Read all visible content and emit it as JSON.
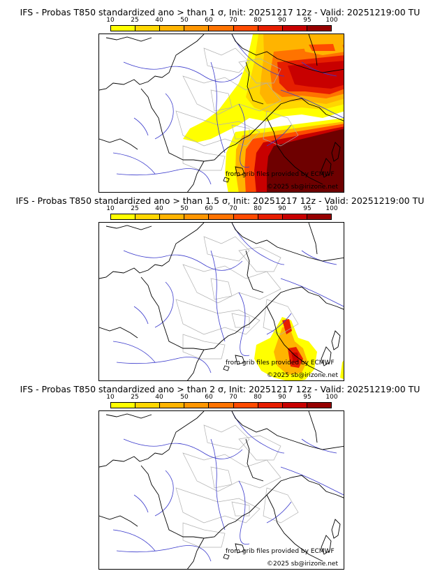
{
  "colorbar": {
    "ticks": [
      "10",
      "25",
      "40",
      "50",
      "60",
      "70",
      "80",
      "90",
      "95",
      "100"
    ],
    "colors": [
      "#ffff00",
      "#ffd700",
      "#ffb400",
      "#ff9600",
      "#ff7300",
      "#ff4b00",
      "#e61e00",
      "#c80000",
      "#960000",
      "#6e0000"
    ]
  },
  "credits": {
    "source": "from grib files provided by ECMWF",
    "copyright": "©2025 sb@irizone.net"
  },
  "panels": [
    {
      "title": "IFS - Probas T850  standardized ano > than 1 σ, Init: 20251217 12z - Valid: 20251219:00 TU"
    },
    {
      "title": "IFS - Probas T850  standardized ano > than 1.5 σ, Init: 20251217 12z - Valid: 20251219:00 TU"
    },
    {
      "title": "IFS - Probas T850  standardized ano > than 2 σ, Init: 20251217 12z - Valid: 20251219:00 TU"
    }
  ],
  "legend_colors": {
    "coast": "#000000",
    "rivers": "#3333cc",
    "borders": "#aaaaaa"
  }
}
